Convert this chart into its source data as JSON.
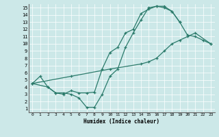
{
  "xlabel": "Humidex (Indice chaleur)",
  "background_color": "#cce8e8",
  "line_color": "#2a7a6a",
  "grid_color": "#ffffff",
  "xlim": [
    -0.5,
    23.5
  ],
  "ylim": [
    0.5,
    15.5
  ],
  "xticks": [
    0,
    1,
    2,
    3,
    4,
    5,
    6,
    7,
    8,
    9,
    10,
    11,
    12,
    13,
    14,
    15,
    16,
    17,
    18,
    19,
    20,
    21,
    22,
    23
  ],
  "yticks": [
    1,
    2,
    3,
    4,
    5,
    6,
    7,
    8,
    9,
    10,
    11,
    12,
    13,
    14,
    15
  ],
  "line1_x": [
    0,
    1,
    2,
    3,
    4,
    5,
    6,
    7,
    8,
    9,
    10,
    11,
    12,
    13,
    14,
    15,
    16,
    17,
    18,
    19
  ],
  "line1_y": [
    4.5,
    5.5,
    4.0,
    3.2,
    3.2,
    3.0,
    2.5,
    1.2,
    1.2,
    3.0,
    5.5,
    6.5,
    9.5,
    11.5,
    13.3,
    15.0,
    15.2,
    15.2,
    14.5,
    13.0
  ],
  "line2_x": [
    0,
    2,
    3,
    4,
    5,
    6,
    7,
    8,
    9,
    10,
    11,
    12,
    13,
    14,
    15,
    16,
    17,
    18,
    19,
    20,
    21,
    22,
    23
  ],
  "line2_y": [
    4.5,
    4.0,
    3.2,
    3.0,
    3.5,
    3.2,
    3.2,
    3.3,
    6.5,
    8.8,
    9.5,
    11.5,
    12.0,
    14.2,
    14.8,
    15.2,
    15.0,
    14.5,
    13.0,
    11.2,
    11.0,
    10.5,
    10.0
  ],
  "line3_x": [
    0,
    5,
    10,
    14,
    15,
    16,
    17,
    18,
    19,
    20,
    21,
    23
  ],
  "line3_y": [
    4.5,
    5.5,
    6.5,
    7.2,
    7.5,
    8.0,
    9.0,
    10.0,
    10.5,
    11.0,
    11.5,
    10.0
  ]
}
